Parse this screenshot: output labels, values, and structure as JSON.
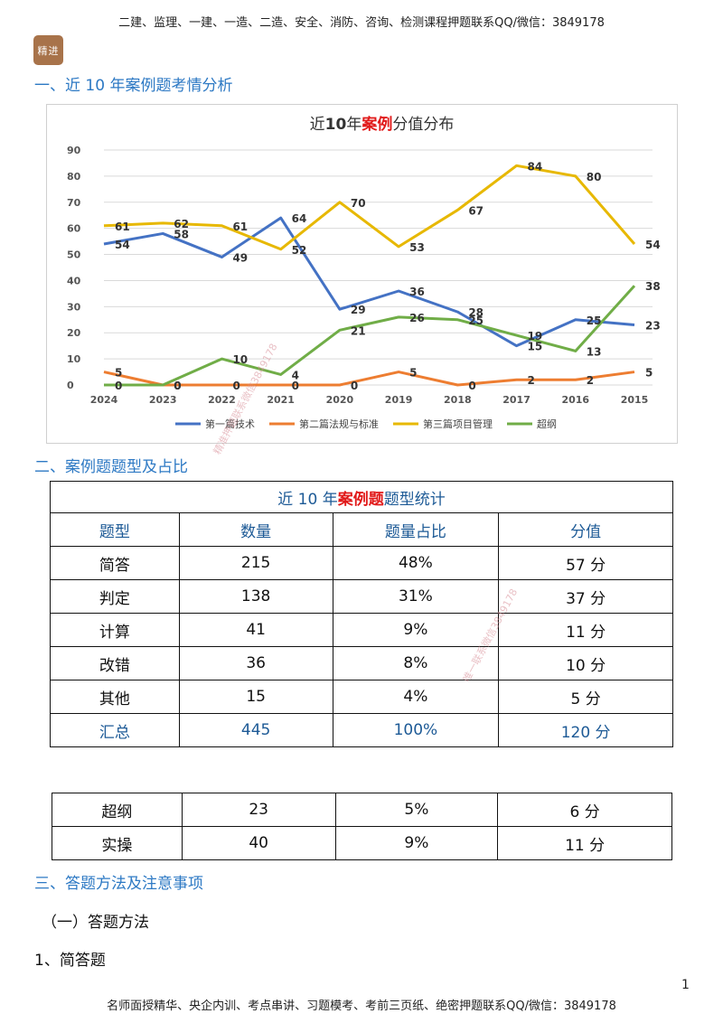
{
  "header": {
    "text": "二建、监理、一建、一造、二造、安全、消防、咨询、检测课程押题联系QQ/微信：3849178"
  },
  "logo": {
    "text": "精进"
  },
  "section1": {
    "title": "一、近 10 年案例题考情分析"
  },
  "chart_data": {
    "type": "line",
    "title_parts": [
      "近",
      "10",
      "年",
      "案例",
      "分值分布"
    ],
    "categories": [
      "2024",
      "2023",
      "2022",
      "2021",
      "2020",
      "2019",
      "2018",
      "2017",
      "2016",
      "2015"
    ],
    "ylim": [
      0,
      90
    ],
    "yticks": [
      "0",
      "10",
      "20",
      "30",
      "40",
      "50",
      "60",
      "70",
      "80",
      "90"
    ],
    "legend_position": "bottom",
    "grid": true,
    "series": [
      {
        "name": "第一篇技术",
        "color": "#4472c4",
        "values": [
          54,
          58,
          49,
          64,
          29,
          36,
          28,
          15,
          25,
          23
        ],
        "labels": [
          "54",
          "58",
          "49",
          "64",
          "29",
          "36",
          "28",
          "15",
          "25",
          "23"
        ]
      },
      {
        "name": "第二篇法规与标准",
        "color": "#ed7d31",
        "values": [
          5,
          0,
          0,
          0,
          0,
          5,
          0,
          2,
          2,
          5
        ],
        "labels": [
          "5",
          "0",
          "0",
          "0",
          "0",
          "5",
          "0",
          "2",
          "2",
          "5"
        ]
      },
      {
        "name": "第三篇项目管理",
        "color": "#e7b800",
        "values": [
          61,
          62,
          61,
          52,
          70,
          53,
          67,
          84,
          80,
          54
        ],
        "labels": [
          "61",
          "62",
          "61",
          "52",
          "70",
          "53",
          "67",
          "84",
          "80",
          "54"
        ]
      },
      {
        "name": "超纲",
        "color": "#70ad47",
        "values": [
          0,
          0,
          10,
          4,
          21,
          26,
          25,
          19,
          13,
          38
        ],
        "labels": [
          "0",
          "0",
          "10",
          "4",
          "21",
          "26",
          "25",
          "19",
          "13",
          "38"
        ]
      }
    ]
  },
  "watermarks": {
    "a": "精准押题联系微信3849178",
    "b": "唯一联系微信3849178"
  },
  "section2": {
    "title": "二、案例题题型及占比"
  },
  "table1": {
    "title_parts": [
      "近 10 年",
      "案例题",
      "题型统计"
    ],
    "headers": [
      "题型",
      "数量",
      "题量占比",
      "分值"
    ],
    "rows": [
      [
        "简答",
        "215",
        "48%",
        "57 分"
      ],
      [
        "判定",
        "138",
        "31%",
        "37 分"
      ],
      [
        "计算",
        "41",
        "9%",
        "11 分"
      ],
      [
        "改错",
        "36",
        "8%",
        "10 分"
      ],
      [
        "其他",
        "15",
        "4%",
        "5 分"
      ]
    ],
    "total": [
      "汇总",
      "445",
      "100%",
      "120 分"
    ]
  },
  "table2": {
    "rows": [
      [
        "超纲",
        "23",
        "5%",
        "6 分"
      ],
      [
        "实操",
        "40",
        "9%",
        "11 分"
      ]
    ]
  },
  "section3": {
    "title": "三、答题方法及注意事项"
  },
  "subsection1": {
    "title": "（一）答题方法"
  },
  "item1": {
    "title": "1、简答题"
  },
  "page_number": "1",
  "footer": {
    "text": "名师面授精华、央企内训、考点串讲、习题模考、考前三页纸、绝密押题联系QQ/微信：3849178"
  }
}
